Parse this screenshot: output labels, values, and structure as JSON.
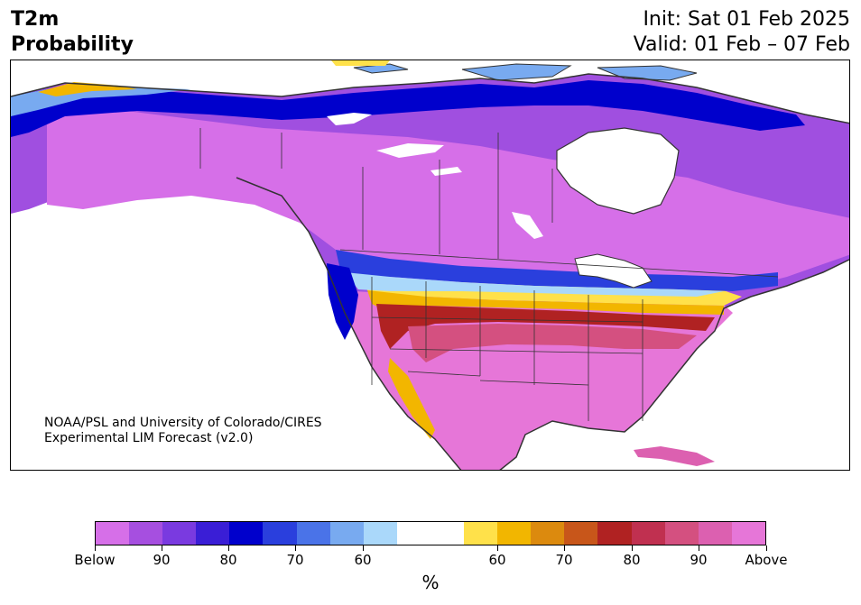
{
  "header": {
    "variable": "T2m",
    "product": "Probability",
    "init": "Init: Sat 01 Feb 2025",
    "valid": "Valid: 01 Feb – 07 Feb"
  },
  "credit": {
    "line1": "NOAA/PSL and University of Colorado/CIRES",
    "line2": "Experimental LIM Forecast (v2.0)"
  },
  "colorbar": {
    "colors": [
      "#d66fe8",
      "#a64fe0",
      "#7a3ae0",
      "#3a1ed6",
      "#0000cc",
      "#2a3fdd",
      "#4a73e8",
      "#78aaf0",
      "#aad8fa",
      "#ffffff",
      "#ffffff",
      "#ffe14a",
      "#f2b600",
      "#dc8a0e",
      "#c8561a",
      "#b02222",
      "#c03050",
      "#d45080",
      "#dc60b0",
      "#e676d8"
    ],
    "labels": [
      "Below",
      "90",
      "80",
      "70",
      "60",
      "60",
      "70",
      "80",
      "90",
      "Above"
    ],
    "unit": "%"
  }
}
